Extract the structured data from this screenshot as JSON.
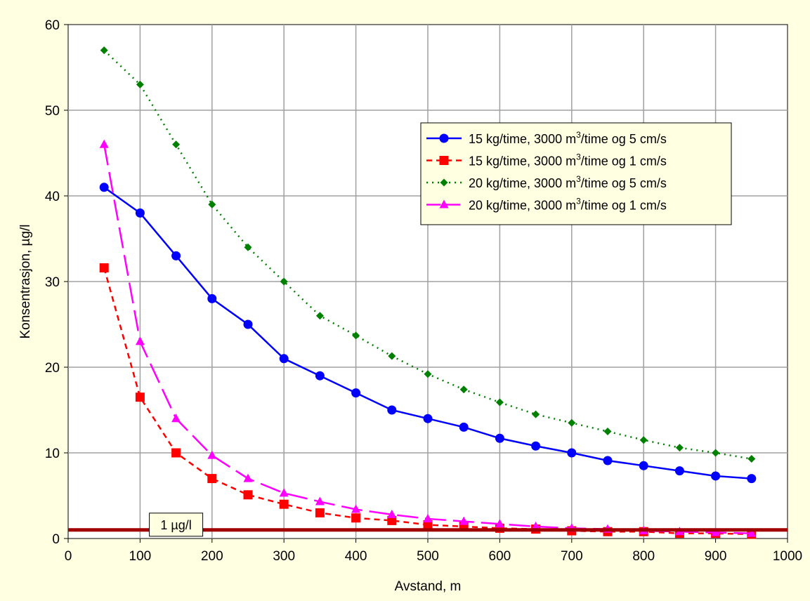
{
  "chart_data": {
    "type": "line",
    "xlabel": "Avstand, m",
    "ylabel": "Konsentrasjon, µg/l",
    "xlim": [
      0,
      1000
    ],
    "ylim": [
      0,
      60
    ],
    "xticks": [
      0,
      100,
      200,
      300,
      400,
      500,
      600,
      700,
      800,
      900,
      1000
    ],
    "yticks": [
      0,
      10,
      20,
      30,
      40,
      50,
      60
    ],
    "grid": true,
    "background": "#ffffe1",
    "plot_background": "#ffffff",
    "legend_position": "top-right",
    "x": [
      50,
      100,
      150,
      200,
      250,
      300,
      350,
      400,
      450,
      500,
      550,
      600,
      650,
      700,
      750,
      800,
      850,
      900,
      950
    ],
    "series": [
      {
        "name_parts": [
          "15 kg/time, 3000 m",
          "3",
          "/time og 5 cm/s"
        ],
        "color": "#0000ff",
        "marker": "circle",
        "line_style": "solid",
        "values": [
          41,
          38,
          33,
          28,
          25,
          21,
          19,
          17,
          15,
          14,
          13,
          11.7,
          10.8,
          10,
          9.1,
          8.5,
          7.9,
          7.3,
          7
        ]
      },
      {
        "name_parts": [
          "15 kg/time, 3000 m",
          "3",
          "/time og 1 cm/s"
        ],
        "color": "#ff0000",
        "marker": "square",
        "line_style": "dashed",
        "values": [
          31.6,
          16.5,
          10,
          7,
          5.1,
          4,
          3,
          2.4,
          2.1,
          1.6,
          1.4,
          1.2,
          1.1,
          0.9,
          0.8,
          0.8,
          0.6,
          0.6,
          0.5
        ]
      },
      {
        "name_parts": [
          "20 kg/time, 3000 m",
          "3",
          "/time og 5 cm/s"
        ],
        "color": "#008000",
        "marker": "diamond",
        "line_style": "dotted",
        "values": [
          57,
          53,
          46,
          39,
          34,
          30,
          26,
          23.7,
          21.3,
          19.2,
          17.4,
          15.9,
          14.5,
          13.5,
          12.5,
          11.5,
          10.6,
          10,
          9.3
        ]
      },
      {
        "name_parts": [
          "20 kg/time, 3000 m",
          "3",
          "/time og 1 cm/s"
        ],
        "color": "#ff00ff",
        "marker": "triangle",
        "line_style": "long-dash",
        "values": [
          46,
          23,
          14,
          9.7,
          7,
          5.3,
          4.3,
          3.4,
          2.8,
          2.3,
          2,
          1.7,
          1.4,
          1.2,
          1.1,
          0.9,
          0.8,
          0.7,
          0.6
        ]
      }
    ],
    "reference_line": {
      "y": 1,
      "color": "#a00000",
      "label": "1 µg/l",
      "label_x": 150
    }
  }
}
